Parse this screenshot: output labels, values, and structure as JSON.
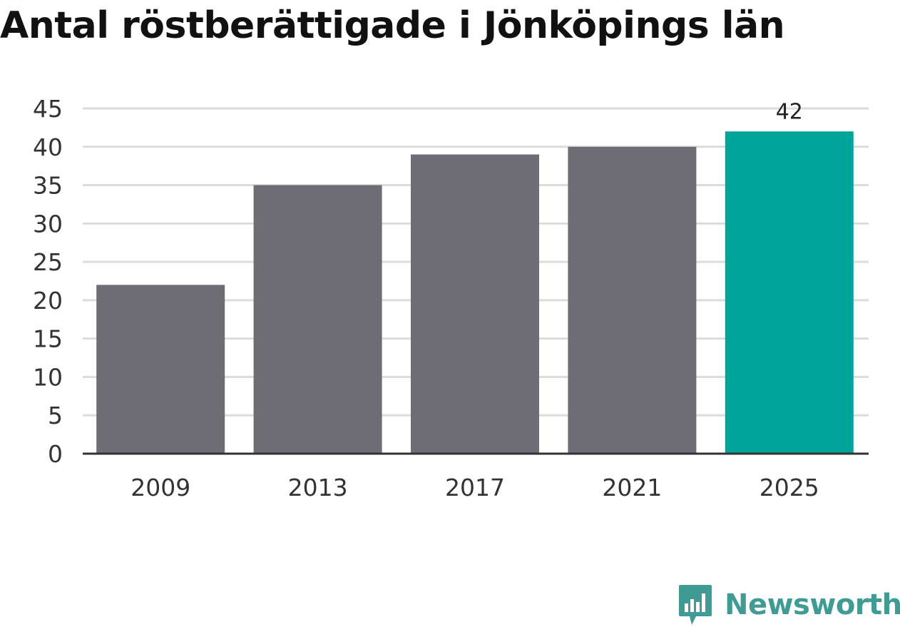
{
  "chart_data": {
    "type": "bar",
    "title": "Antal röstberättigade i Jönköpings län",
    "categories": [
      "2009",
      "2013",
      "2017",
      "2021",
      "2025"
    ],
    "values": [
      22,
      35,
      39,
      40,
      42
    ],
    "highlight_index": 4,
    "value_labels": [
      null,
      null,
      null,
      null,
      "42"
    ],
    "ylim": [
      0,
      45
    ],
    "yticks": [
      0,
      5,
      10,
      15,
      20,
      25,
      30,
      35,
      40,
      45
    ],
    "xlabel": "",
    "ylabel": "",
    "grid": true,
    "colors": {
      "bar": "#6e6d73",
      "highlight": "#00a59a",
      "grid": "#dcdcdc",
      "axis": "#333333"
    }
  },
  "brand": {
    "name": "Newsworthy",
    "icon": "newsworthy-logo-icon",
    "color": "#3f9b94"
  }
}
